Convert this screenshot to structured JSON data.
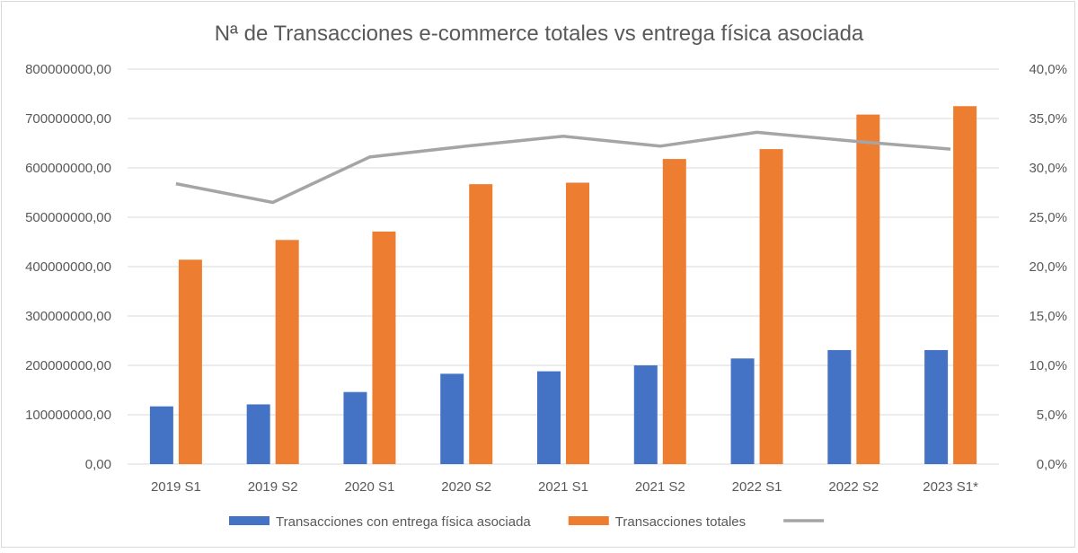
{
  "chart_data": {
    "type": "bar",
    "title": "Nª de Transacciones e-commerce totales vs entrega física asociada",
    "categories": [
      "2019 S1",
      "2019 S2",
      "2020 S1",
      "2020 S2",
      "2021 S1",
      "2021 S2",
      "2022 S1",
      "2022 S2",
      "2023 S1*"
    ],
    "y_left": {
      "min": 0,
      "max": 800000000,
      "step": 100000000,
      "tick_labels": [
        "0,00",
        "100000000,00",
        "200000000,00",
        "300000000,00",
        "400000000,00",
        "500000000,00",
        "600000000,00",
        "700000000,00",
        "800000000,00"
      ]
    },
    "y_right": {
      "min": 0,
      "max": 0.4,
      "step": 0.05,
      "tick_labels": [
        "0,0%",
        "5,0%",
        "10,0%",
        "15,0%",
        "20,0%",
        "25,0%",
        "30,0%",
        "35,0%",
        "40,0%"
      ]
    },
    "series": [
      {
        "name": "Transacciones con entrega física asociada",
        "kind": "bar",
        "axis": "left",
        "color": "#4472c4",
        "values": [
          117000000,
          121000000,
          146000000,
          183000000,
          188000000,
          200000000,
          214000000,
          231000000,
          231000000
        ]
      },
      {
        "name": "Transacciones totales",
        "kind": "bar",
        "axis": "left",
        "color": "#ed7d31",
        "values": [
          414000000,
          454000000,
          471000000,
          567000000,
          570000000,
          618000000,
          638000000,
          708000000,
          725000000
        ]
      },
      {
        "name": "",
        "kind": "line",
        "axis": "right",
        "color": "#a5a5a5",
        "values": [
          0.284,
          0.265,
          0.311,
          0.322,
          0.332,
          0.322,
          0.336,
          0.327,
          0.319
        ]
      }
    ],
    "grid": true,
    "legend_position": "bottom"
  }
}
